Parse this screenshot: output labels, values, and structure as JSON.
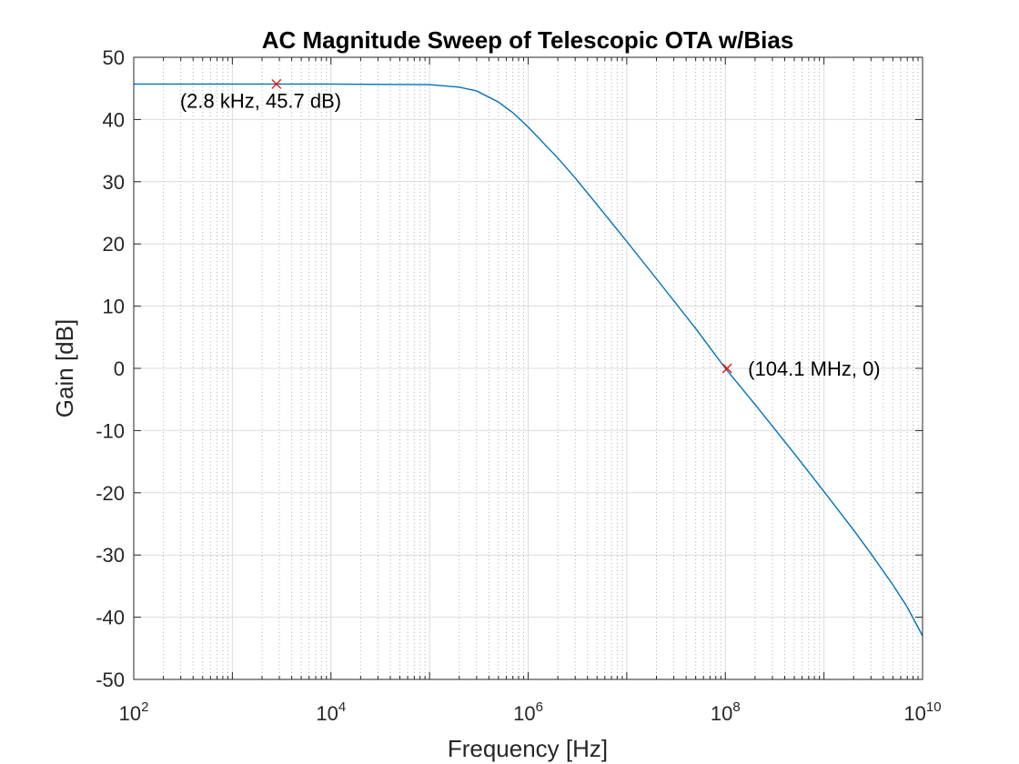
{
  "chart_data": {
    "type": "line",
    "title": "AC Magnitude Sweep of Telescopic OTA w/Bias",
    "xlabel": "Frequency [Hz]",
    "ylabel": "Gain [dB]",
    "xscale": "log",
    "xlim": [
      100,
      10000000000
    ],
    "ylim": [
      -50,
      50
    ],
    "grid": true,
    "minor_grid": true,
    "x_ticks": [
      {
        "value": 100,
        "base": "10",
        "exp": "2"
      },
      {
        "value": 10000,
        "base": "10",
        "exp": "4"
      },
      {
        "value": 1000000,
        "base": "10",
        "exp": "6"
      },
      {
        "value": 100000000,
        "base": "10",
        "exp": "8"
      },
      {
        "value": 10000000000,
        "base": "10",
        "exp": "10"
      }
    ],
    "y_ticks": [
      "50",
      "40",
      "30",
      "20",
      "10",
      "0",
      "-10",
      "-20",
      "-30",
      "-40",
      "-50"
    ],
    "series": [
      {
        "color": "#0072bd",
        "x": [
          100,
          1000,
          10000,
          100000,
          200000,
          300000,
          500000,
          700000,
          1000000,
          2000000,
          3000000,
          5000000,
          10000000,
          20000000,
          50000000,
          100000000,
          200000000,
          500000000,
          1000000000,
          2000000000,
          3000000000,
          5000000000,
          7000000000,
          10000000000
        ],
        "y": [
          45.7,
          45.7,
          45.7,
          45.6,
          45.2,
          44.6,
          42.8,
          41.1,
          38.8,
          33.8,
          30.6,
          26.3,
          20.4,
          14.4,
          6.4,
          0.0,
          -5.8,
          -13.7,
          -19.8,
          -26.0,
          -29.8,
          -34.8,
          -38.4,
          -43.0
        ]
      }
    ],
    "markers": [
      {
        "x": 2800,
        "y": 45.7,
        "label": "(2.8 kHz, 45.7 dB)",
        "color": "#ff0000"
      },
      {
        "x": 104100000,
        "y": 0,
        "label": "(104.1 MHz, 0)",
        "color": "#ff0000"
      }
    ]
  }
}
